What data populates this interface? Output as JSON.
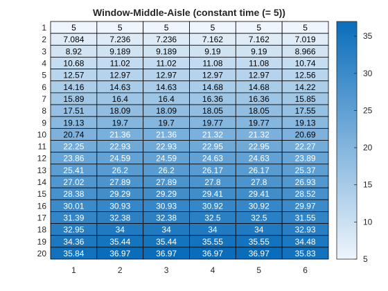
{
  "chart_data": {
    "type": "heatmap",
    "title": "Window-Middle-Aisle (constant time (= 5))",
    "xlabel": "",
    "ylabel": "",
    "x_labels": [
      "1",
      "2",
      "3",
      "4",
      "5",
      "6"
    ],
    "y_labels": [
      "1",
      "2",
      "3",
      "4",
      "5",
      "6",
      "7",
      "8",
      "9",
      "10",
      "11",
      "12",
      "13",
      "14",
      "15",
      "16",
      "17",
      "18",
      "19",
      "20"
    ],
    "values": [
      [
        "5",
        "5",
        "5",
        "5",
        "5",
        "5"
      ],
      [
        "7.084",
        "7.236",
        "7.236",
        "7.162",
        "7.162",
        "7.019"
      ],
      [
        "8.92",
        "9.189",
        "9.189",
        "9.19",
        "9.19",
        "8.966"
      ],
      [
        "10.68",
        "11.02",
        "11.02",
        "11.08",
        "11.08",
        "10.74"
      ],
      [
        "12.57",
        "12.97",
        "12.97",
        "12.97",
        "12.97",
        "12.56"
      ],
      [
        "14.16",
        "14.63",
        "14.63",
        "14.68",
        "14.68",
        "14.22"
      ],
      [
        "15.89",
        "16.4",
        "16.4",
        "16.36",
        "16.36",
        "15.85"
      ],
      [
        "17.51",
        "18.09",
        "18.09",
        "18.05",
        "18.05",
        "17.55"
      ],
      [
        "19.13",
        "19.7",
        "19.7",
        "19.77",
        "19.77",
        "19.13"
      ],
      [
        "20.74",
        "21.36",
        "21.36",
        "21.32",
        "21.32",
        "20.69"
      ],
      [
        "22.25",
        "22.93",
        "22.93",
        "22.95",
        "22.95",
        "22.27"
      ],
      [
        "23.86",
        "24.59",
        "24.59",
        "24.63",
        "24.63",
        "23.89"
      ],
      [
        "25.41",
        "26.2",
        "26.2",
        "26.17",
        "26.17",
        "25.37"
      ],
      [
        "27.02",
        "27.89",
        "27.89",
        "27.8",
        "27.8",
        "26.93"
      ],
      [
        "28.38",
        "29.29",
        "29.29",
        "29.41",
        "29.41",
        "28.52"
      ],
      [
        "30.01",
        "30.93",
        "30.93",
        "30.92",
        "30.92",
        "29.97"
      ],
      [
        "31.39",
        "32.38",
        "32.38",
        "32.5",
        "32.5",
        "31.55"
      ],
      [
        "32.95",
        "34",
        "34",
        "34",
        "34",
        "32.93"
      ],
      [
        "34.36",
        "35.44",
        "35.44",
        "35.55",
        "35.55",
        "34.48"
      ],
      [
        "35.84",
        "36.97",
        "36.97",
        "36.97",
        "36.97",
        "35.83"
      ]
    ],
    "color_range": [
      5,
      36.97
    ],
    "colorbar_ticks": [
      "5",
      "10",
      "15",
      "20",
      "25",
      "30",
      "35"
    ],
    "colormap": {
      "low": "#eef5fc",
      "high": "#0a6dbb"
    },
    "text_color_dark": "#000000",
    "text_color_light": "#ffffff",
    "grid": true
  }
}
